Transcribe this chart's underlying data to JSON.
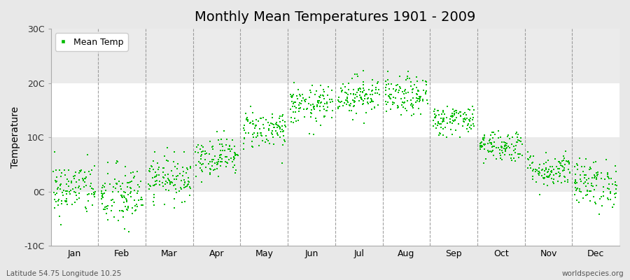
{
  "title": "Monthly Mean Temperatures 1901 - 2009",
  "ylabel": "Temperature",
  "ylim": [
    -10,
    30
  ],
  "yticks": [
    -10,
    0,
    10,
    20,
    30
  ],
  "ytick_labels": [
    "-10C",
    "0C",
    "10C",
    "20C",
    "30C"
  ],
  "months": [
    "Jan",
    "Feb",
    "Mar",
    "Apr",
    "May",
    "Jun",
    "Jul",
    "Aug",
    "Sep",
    "Oct",
    "Nov",
    "Dec"
  ],
  "monthly_means": [
    0.5,
    -1.0,
    2.5,
    6.5,
    11.5,
    15.8,
    17.8,
    17.5,
    13.2,
    8.5,
    4.0,
    1.5
  ],
  "monthly_stds": [
    2.5,
    3.0,
    2.0,
    1.8,
    1.8,
    1.8,
    1.8,
    1.8,
    1.4,
    1.5,
    1.6,
    2.2
  ],
  "n_years": 109,
  "dot_color": "#00bb00",
  "dot_size": 3,
  "figure_bg_color": "#e8e8e8",
  "plot_bg_color": "#ffffff",
  "band_colors": [
    "#ffffff",
    "#ebebeb"
  ],
  "band_ranges": [
    [
      -10,
      0
    ],
    [
      0,
      10
    ],
    [
      10,
      20
    ],
    [
      20,
      30
    ]
  ],
  "dashed_line_color": "#888888",
  "title_fontsize": 14,
  "axis_fontsize": 10,
  "tick_fontsize": 9,
  "legend_label": "Mean Temp",
  "bottom_left_text": "Latitude 54.75 Longitude 10.25",
  "bottom_right_text": "worldspecies.org",
  "seed": 42
}
